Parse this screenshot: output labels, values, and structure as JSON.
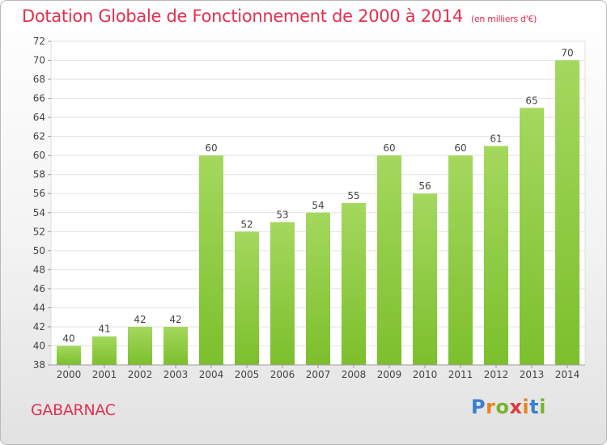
{
  "title": "Dotation Globale de Fonctionnement de 2000 à 2014",
  "unit": "(en milliers d'€)",
  "commune": "GABARNAC",
  "brand": {
    "text": "Proxiti",
    "letters": [
      {
        "ch": "P",
        "color": "#3a7fd0"
      },
      {
        "ch": "r",
        "color": "#e8841c"
      },
      {
        "ch": "o",
        "color": "#74b62a"
      },
      {
        "ch": "x",
        "color": "#e03b3b"
      },
      {
        "ch": "i",
        "color": "#e8841c"
      },
      {
        "ch": "t",
        "color": "#3a7fd0"
      },
      {
        "ch": "i",
        "color": "#74b62a"
      }
    ]
  },
  "chart_data": {
    "type": "bar",
    "categories": [
      "2000",
      "2001",
      "2002",
      "2003",
      "2004",
      "2005",
      "2006",
      "2007",
      "2008",
      "2009",
      "2010",
      "2011",
      "2012",
      "2013",
      "2014"
    ],
    "values": [
      40,
      41,
      42,
      42,
      60,
      52,
      53,
      54,
      55,
      60,
      56,
      60,
      61,
      65,
      70
    ],
    "data_labels": [
      "40",
      "41",
      "42",
      "42",
      "60",
      "52",
      "53",
      "54",
      "55",
      "60",
      "56",
      "60",
      "61",
      "65",
      "70"
    ],
    "ylim": [
      38,
      72
    ],
    "yticks": [
      38,
      40,
      42,
      44,
      46,
      48,
      50,
      52,
      54,
      56,
      58,
      60,
      62,
      64,
      66,
      68,
      70,
      72
    ],
    "xlabel": "",
    "ylabel": "",
    "grid": true,
    "bar_color": "#7cbf2c",
    "bar_color_light": "#a4d85e"
  }
}
